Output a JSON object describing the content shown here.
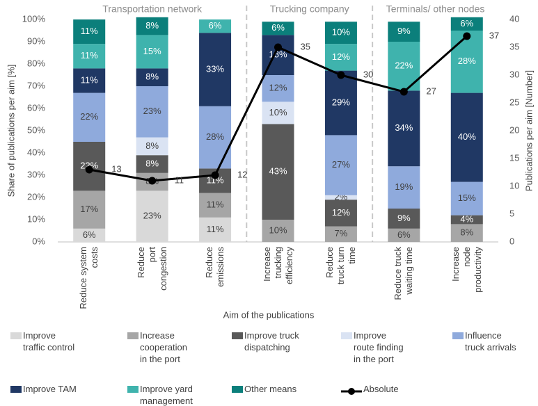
{
  "chart_data": {
    "type": "stacked_bar_line",
    "groups": [
      "Transportation network",
      "Trucking company",
      "Terminals/ other nodes"
    ],
    "ylabel": "Share of publications per aim [%]",
    "y2label": "Publications per aim [Number]",
    "xlabel": "Aim of the publications",
    "categories": [
      "Reduce system\ncosts",
      "Reduce\nport\ncongestion",
      "Reduce\nemissions",
      "Increase\ntrucking\nefficiency",
      "Reduce\ntruck turn\ntime",
      "Reduce truck\nwaiting time",
      "Increase\nnode\nproductivity"
    ],
    "ylim": [
      0,
      100
    ],
    "yticks": [
      {
        "value": 0,
        "label": "0%"
      },
      {
        "value": 10,
        "label": "10%"
      },
      {
        "value": 20,
        "label": "20%"
      },
      {
        "value": 30,
        "label": "30%"
      },
      {
        "value": 40,
        "label": "40%"
      },
      {
        "value": 50,
        "label": "50%"
      },
      {
        "value": 60,
        "label": "60%"
      },
      {
        "value": 70,
        "label": "70%"
      },
      {
        "value": 80,
        "label": "80%"
      },
      {
        "value": 90,
        "label": "90%"
      },
      {
        "value": 100,
        "label": "100%"
      }
    ],
    "y2lim": [
      0,
      40
    ],
    "y2ticks": [
      0,
      5,
      10,
      15,
      20,
      25,
      30,
      35,
      40
    ],
    "series": [
      {
        "name": "Improve\ntraffic control",
        "color": "#d9d9d9",
        "values": [
          6,
          23,
          11,
          null,
          null,
          null,
          null
        ],
        "value_labels": [
          "6%",
          "23%",
          "11%",
          null,
          null,
          null,
          null
        ]
      },
      {
        "name": "Increase\ncooperation\nin the port",
        "color": "#a6a6a6",
        "values": [
          17,
          8,
          11,
          10,
          7,
          6,
          8
        ],
        "value_labels": [
          "17%",
          "8%",
          "11%",
          "10%",
          "7%",
          "6%",
          "8%"
        ]
      },
      {
        "name": "Improve truck\ndispatching",
        "color": "#595959",
        "values": [
          22,
          8,
          11,
          43,
          12,
          9,
          4
        ],
        "value_labels": [
          "22%",
          "8%",
          "11%",
          "43%",
          "12%",
          "9%",
          "4%"
        ]
      },
      {
        "name": "Improve\nroute finding\nin the port",
        "color": "#dae3f3",
        "values": [
          null,
          8,
          null,
          10,
          2,
          null,
          null
        ],
        "value_labels": [
          null,
          "8%",
          null,
          "10%",
          "2%",
          null,
          null
        ]
      },
      {
        "name": "Influence\ntruck arrivals",
        "color": "#8faadc",
        "values": [
          22,
          23,
          28,
          12,
          27,
          19,
          15
        ],
        "value_labels": [
          "22%",
          "23%",
          "28%",
          "12%",
          "27%",
          "19%",
          "15%"
        ]
      },
      {
        "name": "Improve TAM",
        "color": "#203864",
        "values": [
          11,
          8,
          33,
          18,
          29,
          34,
          40
        ],
        "value_labels": [
          "11%",
          "8%",
          "33%",
          "18%",
          "29%",
          "34%",
          "40%"
        ]
      },
      {
        "name": "Improve yard\nmanagement",
        "color": "#3fb3ad",
        "values": [
          11,
          15,
          6,
          null,
          12,
          22,
          28
        ],
        "value_labels": [
          "11%",
          "15%",
          "6%",
          null,
          "12%",
          "22%",
          "28%"
        ]
      },
      {
        "name": "Other means",
        "color": "#0b7f7b",
        "values": [
          11,
          8,
          null,
          6,
          10,
          9,
          6
        ],
        "value_labels": [
          "11%",
          "8%",
          null,
          "6%",
          "10%",
          "9%",
          "6%"
        ]
      },
      {
        "name": "Absolute",
        "color": "#000000",
        "axis": "y2",
        "type": "line",
        "values": [
          13,
          11,
          12,
          35,
          30,
          27,
          37
        ]
      }
    ]
  }
}
